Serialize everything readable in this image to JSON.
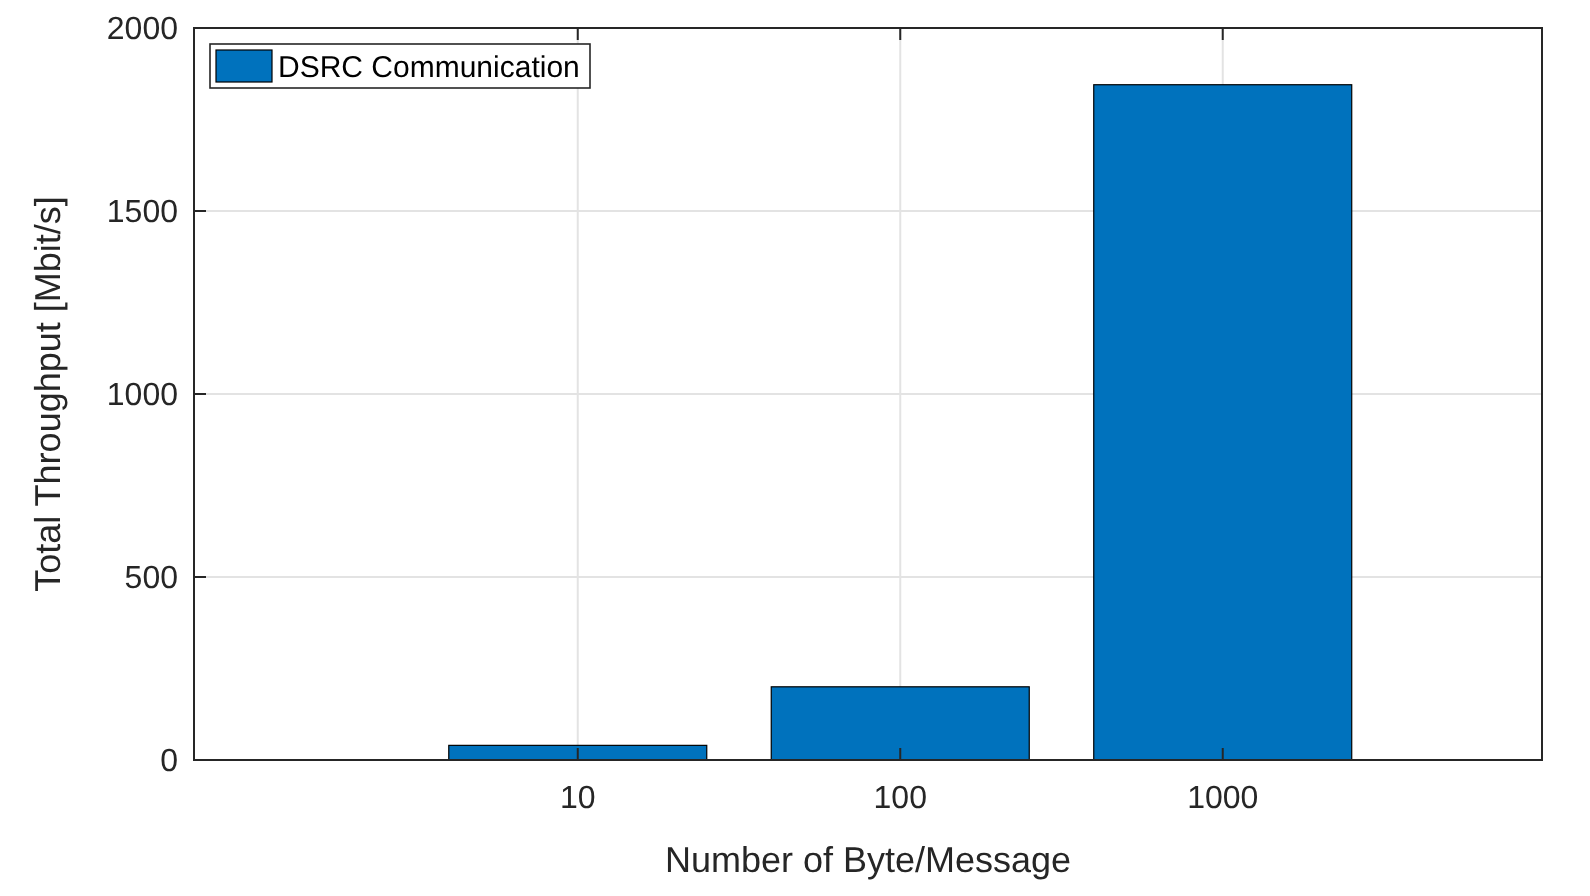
{
  "chart_data": {
    "type": "bar",
    "xlabel": "Number of Byte/Message",
    "ylabel": "Total Throughput [Mbit/s]",
    "categories": [
      "10",
      "100",
      "1000"
    ],
    "series": [
      {
        "name": "DSRC Communication",
        "color": "#0072bd",
        "values": [
          40,
          200,
          1845
        ]
      }
    ],
    "ylim": [
      0,
      2000
    ],
    "yticks": [
      0,
      500,
      1000,
      1500,
      2000
    ],
    "grid": true,
    "legend": "top left"
  }
}
